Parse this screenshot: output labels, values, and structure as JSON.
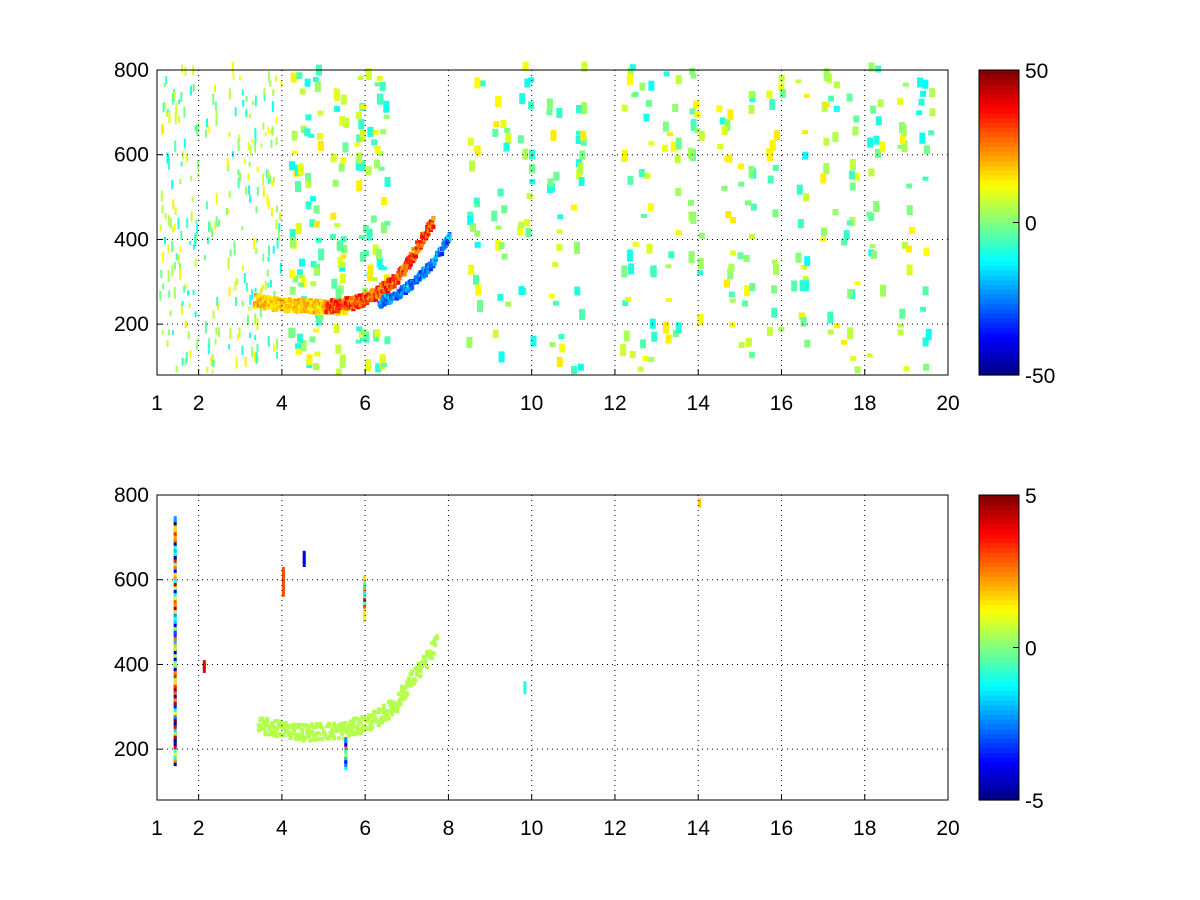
{
  "chart_data": [
    {
      "type": "heatmap",
      "title": "",
      "xlabel": "",
      "ylabel": "",
      "xlim": [
        1,
        20
      ],
      "ylim": [
        80,
        800
      ],
      "xticks": [
        1,
        2,
        4,
        6,
        8,
        10,
        12,
        14,
        16,
        18,
        20
      ],
      "yticks": [
        200,
        400,
        600,
        800
      ],
      "grid": true,
      "colormap": "jet",
      "colorbar": {
        "range": [
          -50,
          50
        ],
        "ticks": [
          -50,
          0,
          50
        ]
      },
      "features": {
        "ridge_curve": [
          [
            3.3,
            250
          ],
          [
            4.0,
            240
          ],
          [
            5.0,
            235
          ],
          [
            5.7,
            245
          ],
          [
            6.2,
            265
          ],
          [
            6.7,
            300
          ],
          [
            7.0,
            340
          ],
          [
            7.3,
            390
          ],
          [
            7.6,
            440
          ]
        ],
        "ridge_value_range": [
          20,
          40
        ],
        "shadow_curve": [
          [
            6.3,
            245
          ],
          [
            6.8,
            270
          ],
          [
            7.2,
            300
          ],
          [
            7.5,
            330
          ],
          [
            7.8,
            370
          ],
          [
            8.0,
            410
          ]
        ],
        "shadow_value_range": [
          -35,
          -15
        ],
        "scatter_columns": [
          1.2,
          1.5,
          1.8,
          2.3,
          2.8,
          3.2,
          3.5,
          3.8,
          4.3,
          4.7,
          5.3,
          5.9,
          6.3,
          8.6,
          9.2,
          9.8,
          10.5,
          11.1,
          12.3,
          12.7,
          13.3,
          13.9,
          14.6,
          15.1,
          15.8,
          16.4,
          17.1,
          17.6,
          18.2,
          18.9,
          19.4
        ],
        "scatter_value_range": [
          -12,
          15
        ]
      }
    },
    {
      "type": "heatmap",
      "title": "",
      "xlabel": "",
      "ylabel": "",
      "xlim": [
        1,
        20
      ],
      "ylim": [
        80,
        800
      ],
      "xticks": [
        1,
        2,
        4,
        6,
        8,
        10,
        12,
        14,
        16,
        18,
        20
      ],
      "yticks": [
        200,
        400,
        600,
        800
      ],
      "grid": true,
      "colormap": "jet",
      "colorbar": {
        "range": [
          -5,
          5
        ],
        "ticks": [
          -5,
          0,
          5
        ]
      },
      "features": {
        "ridge_curve": [
          [
            3.4,
            250
          ],
          [
            4.5,
            235
          ],
          [
            5.5,
            240
          ],
          [
            6.2,
            265
          ],
          [
            6.7,
            300
          ],
          [
            7.0,
            350
          ],
          [
            7.4,
            400
          ],
          [
            7.7,
            450
          ]
        ],
        "ridge_value": 0.5,
        "spikes": [
          {
            "x": 1.4,
            "y": [
              160,
              740
            ],
            "value_range": [
              -5,
              5
            ]
          },
          {
            "x": 2.1,
            "y": [
              380,
              400
            ],
            "value": 4
          },
          {
            "x": 4.0,
            "y": [
              560,
              620
            ],
            "value": 3
          },
          {
            "x": 4.5,
            "y": [
              630,
              660
            ],
            "value": -4
          },
          {
            "x": 5.5,
            "y": [
              150,
              220
            ],
            "value_range": [
              -4,
              3
            ]
          },
          {
            "x": 5.95,
            "y": [
              500,
              600
            ],
            "value_range": [
              -2,
              4
            ]
          },
          {
            "x": 9.8,
            "y": [
              330,
              350
            ],
            "value": -1
          },
          {
            "x": 14.0,
            "y": [
              770,
              780
            ],
            "value": 1.8
          }
        ]
      }
    }
  ]
}
